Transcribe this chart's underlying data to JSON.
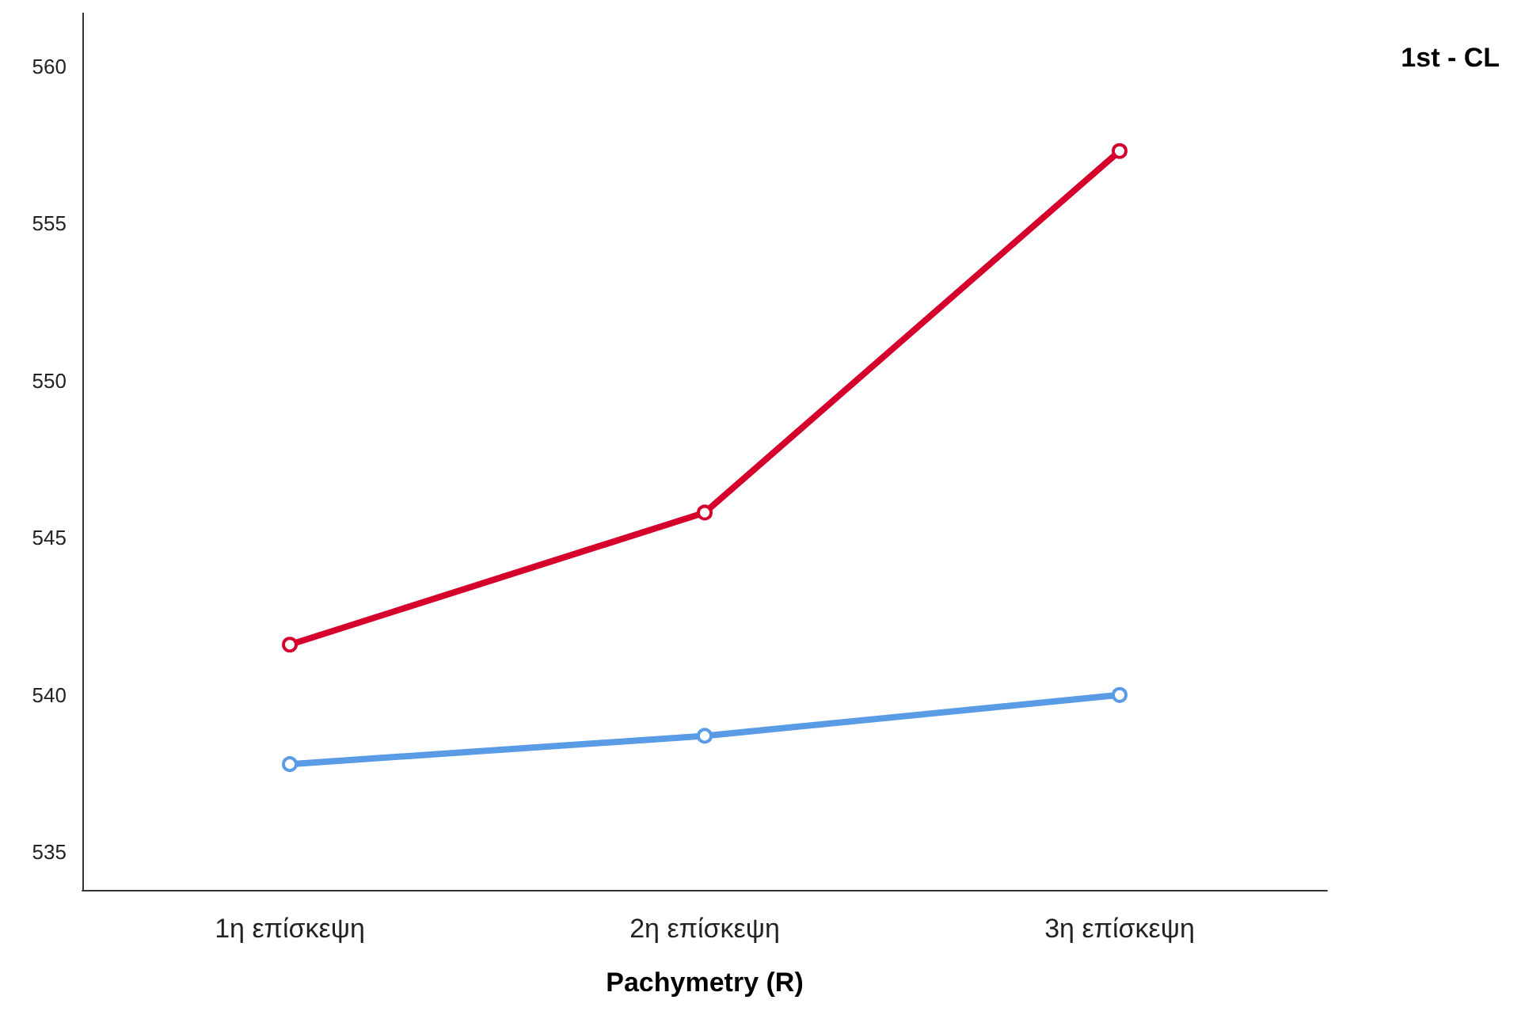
{
  "chart_data": {
    "type": "line",
    "xlabel": "Pachymetry (R)",
    "legend_title": "1st - CL",
    "categories": [
      "1η επίσκεψη",
      "2η επίσκεψη",
      "3η επίσκεψη"
    ],
    "series": [
      {
        "color": "#5a9be6",
        "values": [
          537.8,
          538.7,
          540.0
        ]
      },
      {
        "color": "#d6002c",
        "values": [
          541.6,
          545.8,
          557.3
        ]
      }
    ],
    "ylim": [
      533.8,
      561.7
    ],
    "yticks": [
      535,
      540,
      545,
      550,
      555,
      560
    ],
    "grid": false,
    "marker": "circle",
    "line_style": "solid"
  }
}
